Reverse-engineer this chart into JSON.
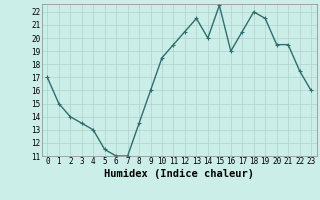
{
  "x": [
    0,
    1,
    2,
    3,
    4,
    5,
    6,
    7,
    8,
    9,
    10,
    11,
    12,
    13,
    14,
    15,
    16,
    17,
    18,
    19,
    20,
    21,
    22,
    23
  ],
  "y": [
    17,
    15,
    14,
    13.5,
    13,
    11.5,
    11,
    11,
    13.5,
    16,
    18.5,
    19.5,
    20.5,
    21.5,
    20,
    22.5,
    19,
    20.5,
    22,
    21.5,
    19.5,
    19.5,
    17.5,
    16
  ],
  "line_color": "#2d6e6e",
  "marker": "+",
  "bg_color": "#cceee8",
  "grid_color": "#b0d0cc",
  "xlabel": "Humidex (Indice chaleur)",
  "xlim": [
    -0.5,
    23.5
  ],
  "ylim": [
    11,
    22.6
  ],
  "yticks": [
    11,
    12,
    13,
    14,
    15,
    16,
    17,
    18,
    19,
    20,
    21,
    22
  ],
  "xticks": [
    0,
    1,
    2,
    3,
    4,
    5,
    6,
    7,
    8,
    9,
    10,
    11,
    12,
    13,
    14,
    15,
    16,
    17,
    18,
    19,
    20,
    21,
    22,
    23
  ],
  "tick_fontsize": 5.5,
  "xlabel_fontsize": 7.5,
  "marker_size": 3.5,
  "linewidth": 1.0
}
